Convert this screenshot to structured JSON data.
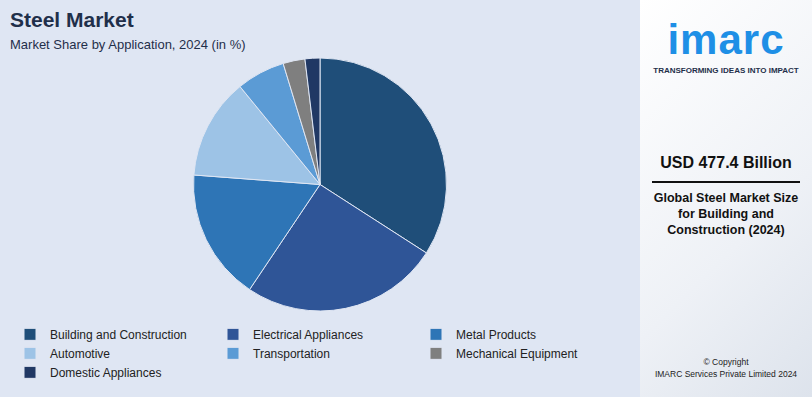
{
  "chart_data": {
    "type": "pie",
    "title": "Steel Market",
    "subtitle": "Market Share by Application, 2024 (in %)",
    "categories": [
      "Building and Construction",
      "Electrical Appliances",
      "Metal Products",
      "Automotive",
      "Transportation",
      "Mechanical Equipment",
      "Domestic Appliances"
    ],
    "values": [
      34.1,
      25.3,
      16.8,
      12.9,
      6.2,
      2.8,
      1.9
    ],
    "colors": [
      "#1f4e79",
      "#2f5597",
      "#2e75b6",
      "#9dc3e6",
      "#5b9bd5",
      "#7f7f7f",
      "#203864"
    ],
    "legend": "bottom",
    "data_labels": false
  },
  "sidebar": {
    "logo": "imarc",
    "tagline": "TRANSFORMING IDEAS INTO IMPACT",
    "value": "USD 477.4 Billion",
    "description": "Global Steel Market Size for Building and Construction (2024)",
    "copyright": [
      "© Copyright",
      "IMARC Services Private Limited 2024"
    ]
  }
}
